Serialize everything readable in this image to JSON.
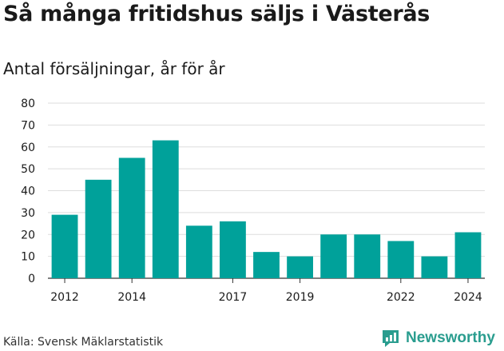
{
  "title": "Så många fritidshus säljs i Västerås",
  "subtitle": "Antal försäljningar, år för år",
  "source": "Källa: Svensk Mäklarstatistik",
  "brand": "Newsworthy",
  "bar_color": "#00a19a",
  "brand_color": "#2a9d8f",
  "chart_data": {
    "type": "bar",
    "title": "Så många fritidshus säljs i Västerås",
    "subtitle": "Antal försäljningar, år för år",
    "xlabel": "",
    "ylabel": "",
    "categories": [
      "2012",
      "2013",
      "2014",
      "2015",
      "2016",
      "2017",
      "2018",
      "2019",
      "2020",
      "2021",
      "2022",
      "2023",
      "2024"
    ],
    "values": [
      29,
      45,
      55,
      63,
      24,
      26,
      12,
      10,
      20,
      20,
      17,
      10,
      21
    ],
    "ylim": [
      0,
      80
    ],
    "yticks": [
      0,
      10,
      20,
      30,
      40,
      50,
      60,
      70,
      80
    ],
    "xtick_labels": [
      "2012",
      "2014",
      "2017",
      "2019",
      "2022",
      "2024"
    ],
    "grid": true,
    "legend": "none"
  }
}
